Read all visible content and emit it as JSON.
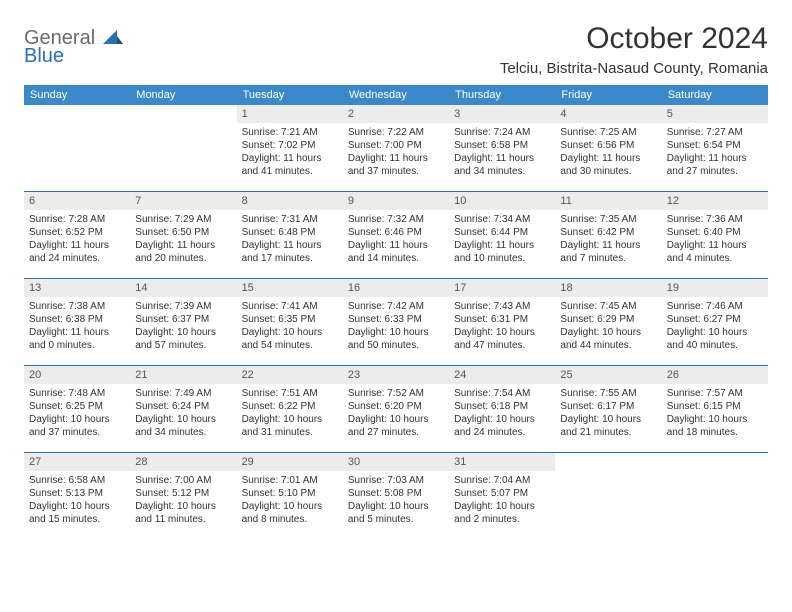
{
  "logo": {
    "general": "General",
    "blue": "Blue"
  },
  "title": "October 2024",
  "subtitle": "Telciu, Bistrita-Nasaud County, Romania",
  "colors": {
    "header_bg": "#3b89c9",
    "border": "#2a6fb5",
    "daynum_bg": "#ececec",
    "text": "#333333",
    "logo_gray": "#6b6b6b",
    "logo_blue": "#2a6fb5"
  },
  "weekdays": [
    "Sunday",
    "Monday",
    "Tuesday",
    "Wednesday",
    "Thursday",
    "Friday",
    "Saturday"
  ],
  "weeks": [
    [
      {
        "empty": true
      },
      {
        "empty": true
      },
      {
        "num": "1",
        "sunrise": "Sunrise: 7:21 AM",
        "sunset": "Sunset: 7:02 PM",
        "daylight": "Daylight: 11 hours and 41 minutes."
      },
      {
        "num": "2",
        "sunrise": "Sunrise: 7:22 AM",
        "sunset": "Sunset: 7:00 PM",
        "daylight": "Daylight: 11 hours and 37 minutes."
      },
      {
        "num": "3",
        "sunrise": "Sunrise: 7:24 AM",
        "sunset": "Sunset: 6:58 PM",
        "daylight": "Daylight: 11 hours and 34 minutes."
      },
      {
        "num": "4",
        "sunrise": "Sunrise: 7:25 AM",
        "sunset": "Sunset: 6:56 PM",
        "daylight": "Daylight: 11 hours and 30 minutes."
      },
      {
        "num": "5",
        "sunrise": "Sunrise: 7:27 AM",
        "sunset": "Sunset: 6:54 PM",
        "daylight": "Daylight: 11 hours and 27 minutes."
      }
    ],
    [
      {
        "num": "6",
        "sunrise": "Sunrise: 7:28 AM",
        "sunset": "Sunset: 6:52 PM",
        "daylight": "Daylight: 11 hours and 24 minutes."
      },
      {
        "num": "7",
        "sunrise": "Sunrise: 7:29 AM",
        "sunset": "Sunset: 6:50 PM",
        "daylight": "Daylight: 11 hours and 20 minutes."
      },
      {
        "num": "8",
        "sunrise": "Sunrise: 7:31 AM",
        "sunset": "Sunset: 6:48 PM",
        "daylight": "Daylight: 11 hours and 17 minutes."
      },
      {
        "num": "9",
        "sunrise": "Sunrise: 7:32 AM",
        "sunset": "Sunset: 6:46 PM",
        "daylight": "Daylight: 11 hours and 14 minutes."
      },
      {
        "num": "10",
        "sunrise": "Sunrise: 7:34 AM",
        "sunset": "Sunset: 6:44 PM",
        "daylight": "Daylight: 11 hours and 10 minutes."
      },
      {
        "num": "11",
        "sunrise": "Sunrise: 7:35 AM",
        "sunset": "Sunset: 6:42 PM",
        "daylight": "Daylight: 11 hours and 7 minutes."
      },
      {
        "num": "12",
        "sunrise": "Sunrise: 7:36 AM",
        "sunset": "Sunset: 6:40 PM",
        "daylight": "Daylight: 11 hours and 4 minutes."
      }
    ],
    [
      {
        "num": "13",
        "sunrise": "Sunrise: 7:38 AM",
        "sunset": "Sunset: 6:38 PM",
        "daylight": "Daylight: 11 hours and 0 minutes."
      },
      {
        "num": "14",
        "sunrise": "Sunrise: 7:39 AM",
        "sunset": "Sunset: 6:37 PM",
        "daylight": "Daylight: 10 hours and 57 minutes."
      },
      {
        "num": "15",
        "sunrise": "Sunrise: 7:41 AM",
        "sunset": "Sunset: 6:35 PM",
        "daylight": "Daylight: 10 hours and 54 minutes."
      },
      {
        "num": "16",
        "sunrise": "Sunrise: 7:42 AM",
        "sunset": "Sunset: 6:33 PM",
        "daylight": "Daylight: 10 hours and 50 minutes."
      },
      {
        "num": "17",
        "sunrise": "Sunrise: 7:43 AM",
        "sunset": "Sunset: 6:31 PM",
        "daylight": "Daylight: 10 hours and 47 minutes."
      },
      {
        "num": "18",
        "sunrise": "Sunrise: 7:45 AM",
        "sunset": "Sunset: 6:29 PM",
        "daylight": "Daylight: 10 hours and 44 minutes."
      },
      {
        "num": "19",
        "sunrise": "Sunrise: 7:46 AM",
        "sunset": "Sunset: 6:27 PM",
        "daylight": "Daylight: 10 hours and 40 minutes."
      }
    ],
    [
      {
        "num": "20",
        "sunrise": "Sunrise: 7:48 AM",
        "sunset": "Sunset: 6:25 PM",
        "daylight": "Daylight: 10 hours and 37 minutes."
      },
      {
        "num": "21",
        "sunrise": "Sunrise: 7:49 AM",
        "sunset": "Sunset: 6:24 PM",
        "daylight": "Daylight: 10 hours and 34 minutes."
      },
      {
        "num": "22",
        "sunrise": "Sunrise: 7:51 AM",
        "sunset": "Sunset: 6:22 PM",
        "daylight": "Daylight: 10 hours and 31 minutes."
      },
      {
        "num": "23",
        "sunrise": "Sunrise: 7:52 AM",
        "sunset": "Sunset: 6:20 PM",
        "daylight": "Daylight: 10 hours and 27 minutes."
      },
      {
        "num": "24",
        "sunrise": "Sunrise: 7:54 AM",
        "sunset": "Sunset: 6:18 PM",
        "daylight": "Daylight: 10 hours and 24 minutes."
      },
      {
        "num": "25",
        "sunrise": "Sunrise: 7:55 AM",
        "sunset": "Sunset: 6:17 PM",
        "daylight": "Daylight: 10 hours and 21 minutes."
      },
      {
        "num": "26",
        "sunrise": "Sunrise: 7:57 AM",
        "sunset": "Sunset: 6:15 PM",
        "daylight": "Daylight: 10 hours and 18 minutes."
      }
    ],
    [
      {
        "num": "27",
        "sunrise": "Sunrise: 6:58 AM",
        "sunset": "Sunset: 5:13 PM",
        "daylight": "Daylight: 10 hours and 15 minutes."
      },
      {
        "num": "28",
        "sunrise": "Sunrise: 7:00 AM",
        "sunset": "Sunset: 5:12 PM",
        "daylight": "Daylight: 10 hours and 11 minutes."
      },
      {
        "num": "29",
        "sunrise": "Sunrise: 7:01 AM",
        "sunset": "Sunset: 5:10 PM",
        "daylight": "Daylight: 10 hours and 8 minutes."
      },
      {
        "num": "30",
        "sunrise": "Sunrise: 7:03 AM",
        "sunset": "Sunset: 5:08 PM",
        "daylight": "Daylight: 10 hours and 5 minutes."
      },
      {
        "num": "31",
        "sunrise": "Sunrise: 7:04 AM",
        "sunset": "Sunset: 5:07 PM",
        "daylight": "Daylight: 10 hours and 2 minutes."
      },
      {
        "empty": true
      },
      {
        "empty": true
      }
    ]
  ]
}
